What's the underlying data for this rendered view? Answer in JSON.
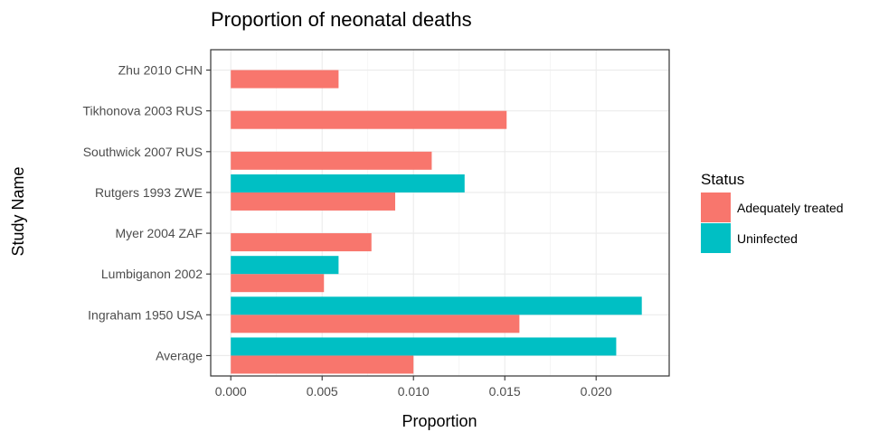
{
  "chart_data": {
    "type": "bar",
    "orientation": "horizontal",
    "title": "Proportion of neonatal deaths",
    "xlabel": "Proportion",
    "ylabel": "Study Name",
    "xlim": [
      -0.0011,
      0.024
    ],
    "x_ticks": [
      "0.000",
      "0.005",
      "0.010",
      "0.015",
      "0.020"
    ],
    "x_tick_values": [
      0,
      0.005,
      0.01,
      0.015,
      0.02
    ],
    "grid": true,
    "legend": {
      "title": "Status",
      "placement": "right"
    },
    "categories": [
      "Zhu 2010 CHN",
      "Tikhonova 2003 RUS",
      "Southwick 2007 RUS",
      "Rutgers 1993 ZWE",
      "Myer 2004 ZAF",
      "Lumbiganon 2002",
      "Ingraham 1950 USA",
      "Average"
    ],
    "series": [
      {
        "name": "Adequately treated",
        "color": "#F8766D",
        "values": [
          0.0059,
          0.0151,
          0.011,
          0.009,
          0.0077,
          0.0051,
          0.0158,
          0.01
        ]
      },
      {
        "name": "Uninfected",
        "color": "#00BFC4",
        "values": [
          null,
          null,
          null,
          0.0128,
          null,
          0.0059,
          0.0225,
          0.0211
        ]
      }
    ]
  }
}
